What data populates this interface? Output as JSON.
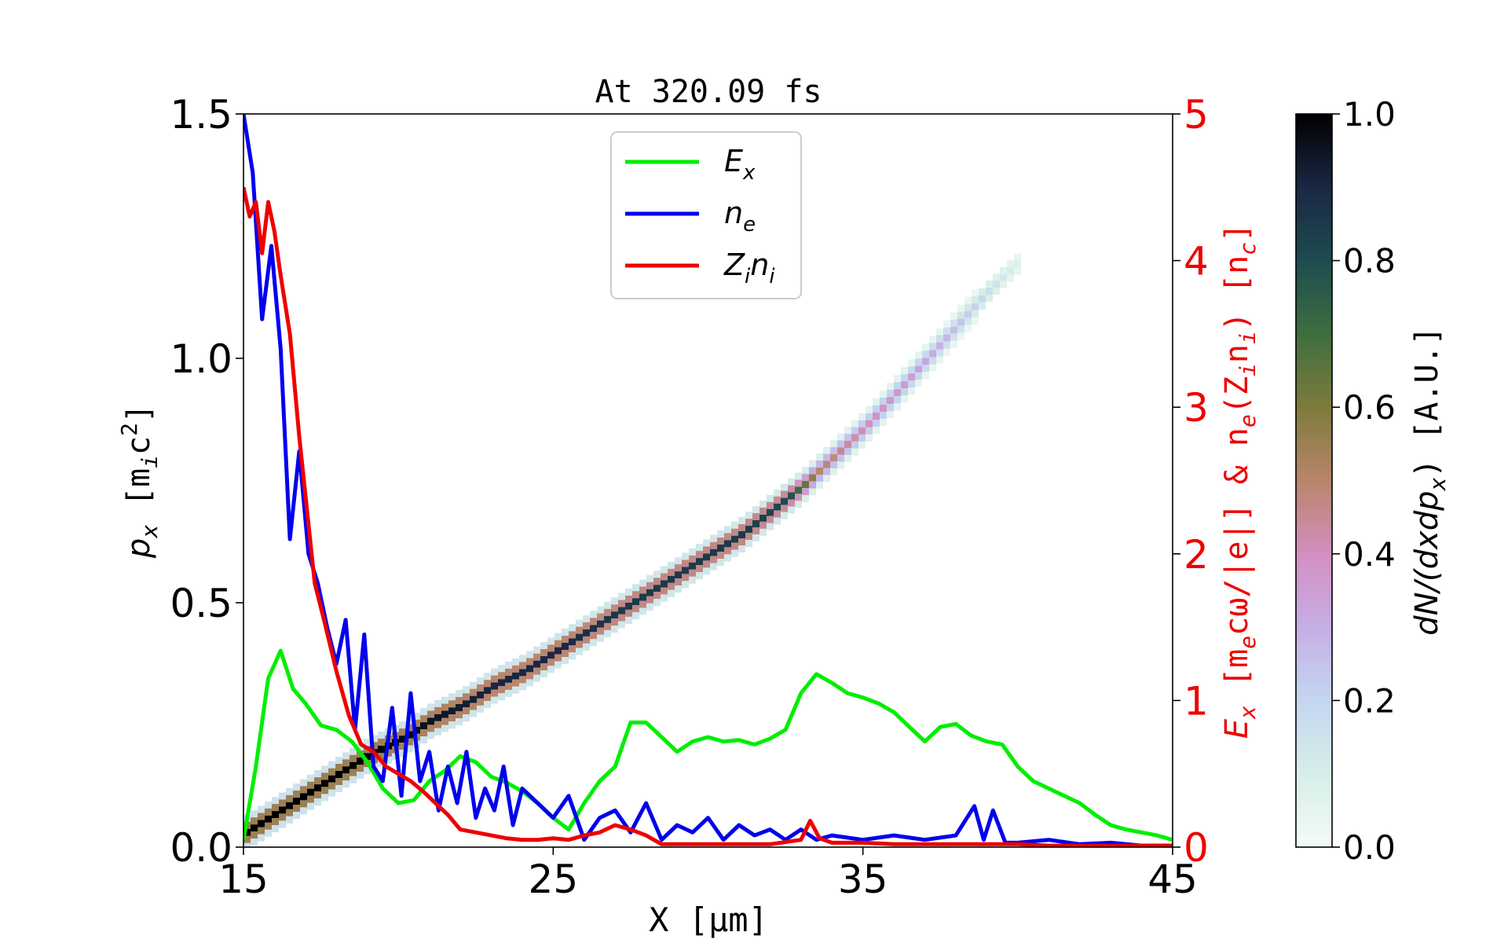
{
  "chart_data": {
    "type": "line",
    "title": "At 320.09 fs",
    "xlabel": "X [μm]",
    "ylabel_left": {
      "main": "p",
      "sub": "x",
      "unit": " [m",
      "unit_sub": "i",
      "unit_tail": "c",
      "unit_sup": "2",
      "close": "]"
    },
    "ylabel_right": "E_x [m_e c ω/|e|] & n_e (Z_i n_i) [n_c]",
    "ylabel_right_parts": {
      "E": "E",
      "Esub": "x",
      "u1": " [m",
      "u1sub": "e",
      "u1tail": "cω/|e|]  &  n",
      "nsub": "e",
      "open": "(Z",
      "zsub": "i",
      "n2": "n",
      "n2sub": "i",
      "close": ")  [n",
      "csub": "c",
      "end": "]"
    },
    "xlim": [
      15,
      45
    ],
    "ylim_left": [
      0.0,
      1.5
    ],
    "ylim_right": [
      0,
      5
    ],
    "x_ticks": [
      "15",
      "25",
      "35",
      "45"
    ],
    "y_left_ticks": [
      "0.0",
      "0.5",
      "1.0",
      "1.5"
    ],
    "y_right_ticks": [
      "0",
      "1",
      "2",
      "3",
      "4",
      "5"
    ],
    "colorbar": {
      "label": "dN/(dxdp_x) [A.U.]",
      "label_parts": {
        "main": "dN/(dxdp",
        "sub": "x",
        "tail": ")  [A.U.]"
      },
      "ticks": [
        "0.0",
        "0.2",
        "0.4",
        "0.6",
        "0.8",
        "1.0"
      ],
      "range": [
        0,
        1
      ]
    },
    "legend": {
      "placement": "upper-center",
      "entries": [
        {
          "name": "E_x",
          "main": "E",
          "sub": "x",
          "color": "#00ee00"
        },
        {
          "name": "n_e",
          "main": "n",
          "sub": "e",
          "color": "#0000ee"
        },
        {
          "name": "Z_i n_i",
          "main": "Z",
          "sub": "i",
          "main2": "n",
          "sub2": "i",
          "color": "#ee0000"
        }
      ]
    },
    "phase_space": {
      "description_axis": "left",
      "points": [
        [
          15.0,
          0.03
        ],
        [
          16.0,
          0.07
        ],
        [
          17.0,
          0.11
        ],
        [
          18.0,
          0.15
        ],
        [
          19.0,
          0.19
        ],
        [
          20.0,
          0.22
        ],
        [
          21.0,
          0.26
        ],
        [
          22.0,
          0.29
        ],
        [
          23.0,
          0.33
        ],
        [
          24.0,
          0.36
        ],
        [
          25.0,
          0.4
        ],
        [
          26.0,
          0.44
        ],
        [
          27.0,
          0.48
        ],
        [
          28.0,
          0.52
        ],
        [
          29.0,
          0.56
        ],
        [
          30.0,
          0.6
        ],
        [
          31.0,
          0.64
        ],
        [
          32.0,
          0.69
        ],
        [
          33.0,
          0.74
        ],
        [
          34.0,
          0.8
        ],
        [
          35.0,
          0.86
        ],
        [
          36.0,
          0.93
        ],
        [
          37.0,
          1.0
        ],
        [
          38.0,
          1.07
        ],
        [
          39.0,
          1.14
        ],
        [
          40.0,
          1.2
        ]
      ],
      "density": [
        [
          15,
          1.0
        ],
        [
          17,
          1.0
        ],
        [
          19,
          1.0
        ],
        [
          21,
          0.95
        ],
        [
          23,
          0.9
        ],
        [
          25,
          0.9
        ],
        [
          27,
          0.85
        ],
        [
          29,
          0.85
        ],
        [
          31,
          0.85
        ],
        [
          32.5,
          0.8
        ],
        [
          33.5,
          0.5
        ],
        [
          35,
          0.4
        ],
        [
          36.5,
          0.35
        ],
        [
          38,
          0.25
        ],
        [
          39.5,
          0.12
        ],
        [
          40.2,
          0.05
        ]
      ]
    },
    "series": [
      {
        "name": "E_x",
        "axis": "right",
        "color": "#00ee00",
        "x": [
          15.0,
          15.4,
          15.8,
          16.2,
          16.6,
          17.0,
          17.5,
          18.0,
          18.5,
          19.0,
          19.5,
          20.0,
          20.5,
          21.0,
          21.5,
          22.0,
          22.5,
          23.0,
          23.5,
          24.0,
          24.5,
          25.0,
          25.5,
          26.0,
          26.5,
          27.0,
          27.5,
          28.0,
          28.5,
          29.0,
          29.5,
          30.0,
          30.5,
          31.0,
          31.5,
          32.0,
          32.5,
          33.0,
          33.5,
          34.0,
          34.5,
          35.0,
          35.5,
          36.0,
          36.5,
          37.0,
          37.5,
          38.0,
          38.5,
          39.0,
          39.5,
          40.0,
          40.5,
          41.0,
          41.5,
          42.0,
          42.5,
          43.0,
          43.5,
          44.0,
          44.5,
          45.0
        ],
        "y": [
          0.05,
          0.55,
          1.15,
          1.34,
          1.08,
          0.98,
          0.83,
          0.8,
          0.72,
          0.58,
          0.4,
          0.3,
          0.32,
          0.45,
          0.52,
          0.62,
          0.58,
          0.48,
          0.44,
          0.38,
          0.3,
          0.2,
          0.12,
          0.3,
          0.45,
          0.55,
          0.85,
          0.85,
          0.75,
          0.65,
          0.72,
          0.75,
          0.72,
          0.73,
          0.7,
          0.74,
          0.8,
          1.05,
          1.18,
          1.12,
          1.05,
          1.02,
          0.98,
          0.92,
          0.82,
          0.72,
          0.82,
          0.84,
          0.76,
          0.72,
          0.7,
          0.55,
          0.45,
          0.4,
          0.35,
          0.3,
          0.22,
          0.15,
          0.12,
          0.1,
          0.08,
          0.05
        ]
      },
      {
        "name": "n_e",
        "axis": "right",
        "color": "#0000ee",
        "x": [
          15.0,
          15.3,
          15.6,
          15.9,
          16.2,
          16.5,
          16.8,
          17.1,
          17.4,
          17.7,
          18.0,
          18.3,
          18.6,
          18.9,
          19.2,
          19.5,
          19.8,
          20.1,
          20.4,
          20.7,
          21.0,
          21.3,
          21.6,
          21.9,
          22.2,
          22.5,
          22.8,
          23.1,
          23.4,
          23.7,
          24.0,
          24.5,
          25.0,
          25.5,
          26.0,
          26.5,
          27.0,
          27.5,
          28.0,
          28.5,
          29.0,
          29.5,
          30.0,
          30.5,
          31.0,
          31.5,
          32.0,
          32.5,
          33.0,
          33.5,
          34.0,
          35.0,
          36.0,
          37.0,
          38.0,
          38.6,
          38.9,
          39.2,
          39.6,
          40.0,
          41.0,
          42.0,
          43.0,
          44.0,
          45.0
        ],
        "y": [
          5.0,
          4.6,
          3.6,
          4.1,
          3.4,
          2.1,
          2.7,
          2.0,
          1.8,
          1.5,
          1.25,
          1.55,
          0.8,
          1.45,
          0.55,
          0.45,
          0.95,
          0.35,
          1.05,
          0.45,
          0.65,
          0.25,
          0.55,
          0.3,
          0.65,
          0.2,
          0.4,
          0.25,
          0.55,
          0.15,
          0.4,
          0.3,
          0.2,
          0.35,
          0.05,
          0.2,
          0.25,
          0.1,
          0.3,
          0.05,
          0.15,
          0.1,
          0.2,
          0.05,
          0.15,
          0.08,
          0.12,
          0.05,
          0.12,
          0.05,
          0.08,
          0.05,
          0.08,
          0.05,
          0.08,
          0.28,
          0.05,
          0.25,
          0.03,
          0.03,
          0.05,
          0.02,
          0.03,
          0.01,
          0.01
        ]
      },
      {
        "name": "Z_i n_i",
        "axis": "right",
        "color": "#ee0000",
        "x": [
          15.0,
          15.2,
          15.4,
          15.6,
          15.8,
          16.0,
          16.2,
          16.5,
          16.8,
          17.0,
          17.3,
          17.6,
          18.0,
          18.4,
          18.8,
          19.2,
          19.6,
          20.0,
          20.4,
          20.8,
          21.2,
          21.6,
          22.0,
          22.5,
          23.0,
          23.5,
          24.0,
          24.5,
          25.0,
          25.5,
          26.0,
          26.5,
          27.0,
          27.5,
          28.0,
          28.5,
          29.0,
          30.0,
          31.0,
          32.0,
          33.0,
          33.3,
          33.6,
          34.0,
          35.0,
          36.0,
          37.0,
          38.0,
          39.0,
          40.0,
          41.0,
          42.0,
          43.0,
          44.0,
          45.0
        ],
        "y": [
          4.5,
          4.3,
          4.4,
          4.05,
          4.4,
          4.2,
          3.9,
          3.5,
          2.8,
          2.4,
          1.8,
          1.55,
          1.2,
          0.9,
          0.7,
          0.65,
          0.55,
          0.5,
          0.45,
          0.38,
          0.3,
          0.22,
          0.12,
          0.1,
          0.08,
          0.06,
          0.05,
          0.05,
          0.06,
          0.05,
          0.08,
          0.1,
          0.15,
          0.12,
          0.08,
          0.02,
          0.02,
          0.02,
          0.02,
          0.02,
          0.05,
          0.18,
          0.06,
          0.03,
          0.03,
          0.02,
          0.02,
          0.02,
          0.02,
          0.02,
          0.01,
          0.01,
          0.01,
          0.01,
          0.01
        ]
      }
    ]
  }
}
